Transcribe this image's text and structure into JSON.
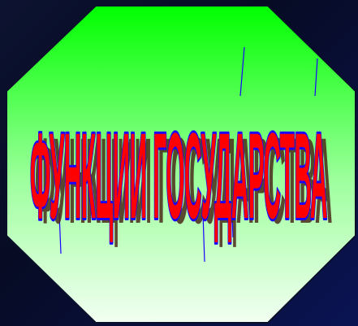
{
  "slide": {
    "title": "ФУНКЦИИ ГОСУДАРСТВА"
  },
  "colors": {
    "background": "#070b24",
    "octagon_top": "#00ff00",
    "octagon_bottom": "#f2fff2",
    "title_fill": "#ff0000",
    "title_outline": "#1a00ff",
    "title_shadow": "#4a2a1a"
  }
}
